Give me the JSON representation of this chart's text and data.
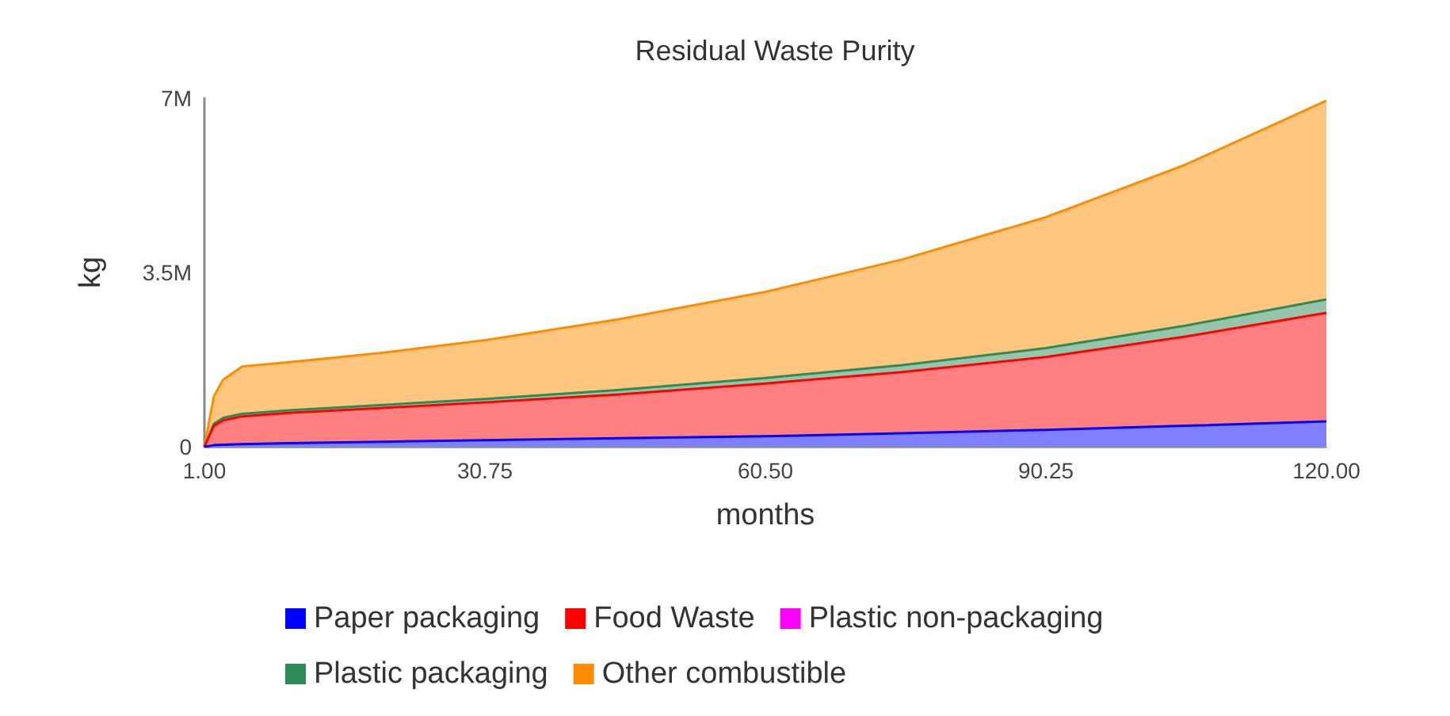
{
  "chart_data": {
    "type": "area",
    "title": "Residual Waste Purity",
    "xlabel": "months",
    "ylabel": "kg",
    "stacked": true,
    "legend": "bottom",
    "x": [
      1,
      2,
      3,
      5,
      10,
      20,
      30.75,
      45,
      60.5,
      75,
      90.25,
      105,
      120
    ],
    "xlim": [
      1,
      120
    ],
    "xticks": [
      {
        "value": 1,
        "label": "1.00"
      },
      {
        "value": 30.75,
        "label": "30.75"
      },
      {
        "value": 60.5,
        "label": "60.50"
      },
      {
        "value": 90.25,
        "label": "90.25"
      },
      {
        "value": 120,
        "label": "120.00"
      }
    ],
    "ylim": [
      0,
      7000000
    ],
    "yticks": [
      {
        "value": 0,
        "label": "0"
      },
      {
        "value": 3500000,
        "label": "3.5M"
      },
      {
        "value": 7000000,
        "label": "7M"
      }
    ],
    "series": [
      {
        "name": "Paper packaging",
        "color": "#0000ff",
        "values": [
          0,
          30000,
          40000,
          50000,
          70000,
          100000,
          130000,
          170000,
          210000,
          270000,
          340000,
          420000,
          510000
        ]
      },
      {
        "name": "Food Waste",
        "color": "#ff0000",
        "values": [
          0,
          390000,
          490000,
          560000,
          610000,
          680000,
          760000,
          880000,
          1060000,
          1230000,
          1460000,
          1790000,
          2180000
        ]
      },
      {
        "name": "Plastic non-packaging",
        "color": "#ff00ff",
        "values": [
          null,
          null,
          null,
          null,
          null,
          null,
          null,
          null,
          null,
          null,
          null,
          null,
          null
        ]
      },
      {
        "name": "Plastic packaging",
        "color": "#2e8b57",
        "values": [
          0,
          40000,
          50000,
          50000,
          50000,
          60000,
          70000,
          90000,
          110000,
          140000,
          180000,
          220000,
          270000
        ]
      },
      {
        "name": "Other combustible",
        "color": "#ff8c00",
        "values": [
          0,
          550000,
          770000,
          950000,
          970000,
          1050000,
          1180000,
          1420000,
          1730000,
          2120000,
          2630000,
          3230000,
          3990000
        ]
      }
    ]
  }
}
